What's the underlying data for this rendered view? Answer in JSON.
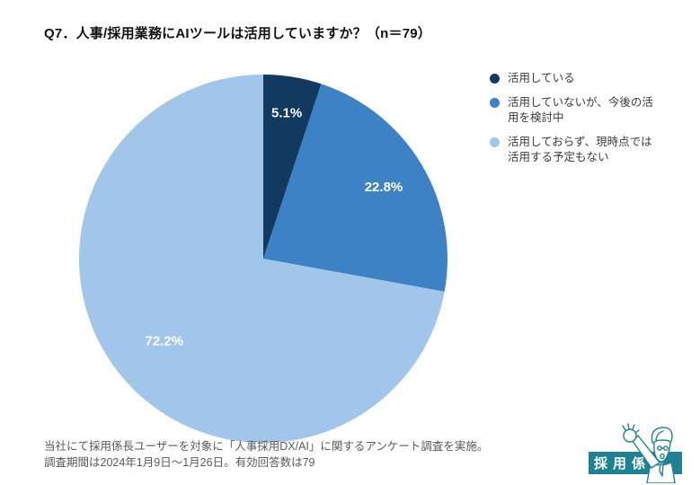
{
  "chart_data": {
    "type": "pie",
    "title": "Q7．人事/採用業務にAIツールは活用していますか？（n＝79）",
    "n": 79,
    "unit": "%",
    "slices": [
      {
        "label": "活用している",
        "value": 5.1,
        "display": "5.1%",
        "color": "#123a60"
      },
      {
        "label": "活用していないが、今後の活用を検討中",
        "value": 22.8,
        "display": "22.8%",
        "color": "#3d82c4"
      },
      {
        "label": "活用しておらず、現時点では活用する予定もない",
        "value": 72.2,
        "display": "72.2%",
        "color": "#a2c6ea"
      }
    ],
    "start_angle_deg": 0,
    "direction": "clockwise",
    "legend_position": "right",
    "value_label_color": "#ffffff",
    "label_radius_factors": [
      0.8,
      0.76,
      0.7
    ]
  },
  "footer": {
    "line1": "当社にて採用係長ユーザーを対象に「人事採用DX/AI」に関するアンケート調査を実施。",
    "line2": "調査期間は2024年1月9日〜1月26日。有効回答数は79"
  },
  "logo": {
    "text": "採用係長",
    "color": "#1e8294"
  }
}
